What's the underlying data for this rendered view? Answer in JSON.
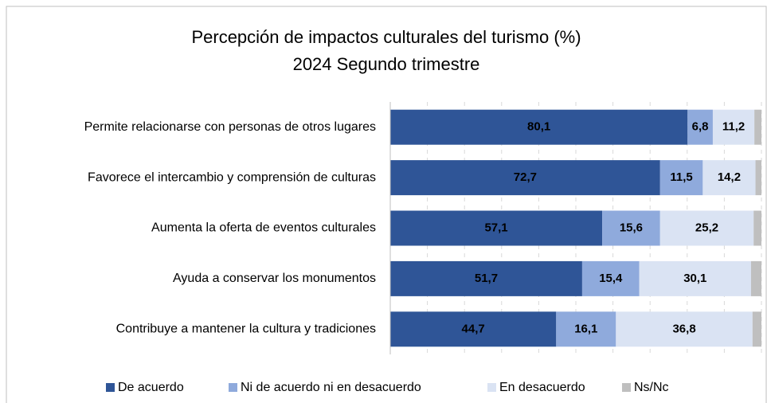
{
  "chart_data": {
    "type": "stacked_bar_horizontal",
    "title": "Percepción de impactos culturales del turismo (%)",
    "subtitle": "2024 Segundo trimestre",
    "categories": [
      "Permite relacionarse con personas de otros lugares",
      "Favorece el intercambio y comprensión de culturas",
      "Aumenta la oferta de eventos culturales",
      "Ayuda a conservar los monumentos",
      "Contribuye a mantener la cultura y tradiciones"
    ],
    "series": [
      {
        "name": "De acuerdo",
        "color": "#2f5597",
        "values": [
          80.1,
          72.7,
          57.1,
          51.7,
          44.7
        ],
        "value_labels": [
          "80,1",
          "72,7",
          "57,1",
          "51,7",
          "44,7"
        ]
      },
      {
        "name": "Ni de acuerdo ni en desacuerdo",
        "color": "#8faadc",
        "values": [
          6.8,
          11.5,
          15.6,
          15.4,
          16.1
        ],
        "value_labels": [
          "6,8",
          "11,5",
          "15,6",
          "15,4",
          "16,1"
        ]
      },
      {
        "name": "En desacuerdo",
        "color": "#dae3f3",
        "values": [
          11.2,
          14.2,
          25.2,
          30.1,
          36.8
        ],
        "value_labels": [
          "11,2",
          "14,2",
          "25,2",
          "30,1",
          "36,8"
        ]
      },
      {
        "name": "Ns/Nc",
        "color": "#bfbfbf",
        "values": [
          1.9,
          1.6,
          2.1,
          2.8,
          2.4
        ]
      }
    ],
    "xlim": [
      0,
      100
    ],
    "xticks": [
      0,
      10,
      20,
      30,
      40,
      50,
      60,
      70,
      80,
      90,
      100
    ],
    "grid": true,
    "legend": "bottom"
  }
}
